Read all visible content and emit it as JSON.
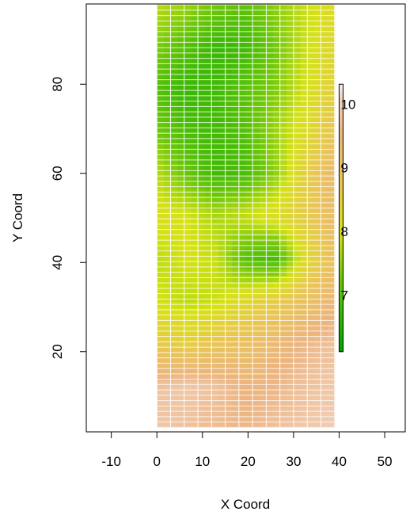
{
  "chart_data": {
    "type": "heatmap",
    "title": "",
    "xlabel": "X Coord",
    "ylabel": "Y Coord",
    "xlim": [
      -15.5,
      54.5
    ],
    "ylim": [
      2,
      98
    ],
    "xticks": [
      -10,
      0,
      10,
      20,
      30,
      40,
      50
    ],
    "yticks": [
      20,
      40,
      60,
      80
    ],
    "xtick_labels": [
      "-10",
      "0",
      "10",
      "20",
      "30",
      "40",
      "50"
    ],
    "ytick_labels": [
      "20",
      "40",
      "60",
      "80"
    ],
    "field": {
      "x_range": [
        0,
        39
      ],
      "y_range": [
        3,
        98
      ],
      "grid": "on",
      "x_nodes": [
        0,
        6.5,
        13,
        19.5,
        26,
        32.5,
        39
      ],
      "y_nodes": [
        3,
        12.5,
        22,
        31.5,
        41,
        50.5,
        60,
        69.5,
        79,
        88.5,
        98
      ],
      "values": [
        [
          9.9,
          9.8,
          9.7,
          9.6,
          9.8,
          9.9,
          10.0
        ],
        [
          9.8,
          9.9,
          9.8,
          9.5,
          9.6,
          9.8,
          9.9
        ],
        [
          8.6,
          8.5,
          8.8,
          9.0,
          9.3,
          9.6,
          9.8
        ],
        [
          8.0,
          7.8,
          7.9,
          8.3,
          8.6,
          9.0,
          9.4
        ],
        [
          7.8,
          8.0,
          7.9,
          7.0,
          6.8,
          8.2,
          9.0
        ],
        [
          8.1,
          8.0,
          7.7,
          7.9,
          8.2,
          8.6,
          9.2
        ],
        [
          7.8,
          7.2,
          6.8,
          6.9,
          7.5,
          8.5,
          9.3
        ],
        [
          7.3,
          6.9,
          6.8,
          7.0,
          7.6,
          8.2,
          8.8
        ],
        [
          7.0,
          6.7,
          6.8,
          7.1,
          7.4,
          8.0,
          8.5
        ],
        [
          7.4,
          7.0,
          6.7,
          6.8,
          7.3,
          7.9,
          8.3
        ],
        [
          7.8,
          7.6,
          7.3,
          7.1,
          7.5,
          7.9,
          8.2
        ]
      ]
    },
    "colorbar": {
      "x": 40,
      "y_range": [
        20,
        80
      ],
      "value_range": [
        6.1,
        10.3
      ],
      "ticks": [
        7,
        8,
        9,
        10
      ],
      "tick_labels": [
        "7",
        "8",
        "9",
        "10"
      ],
      "palette": "terrain.colors"
    }
  }
}
